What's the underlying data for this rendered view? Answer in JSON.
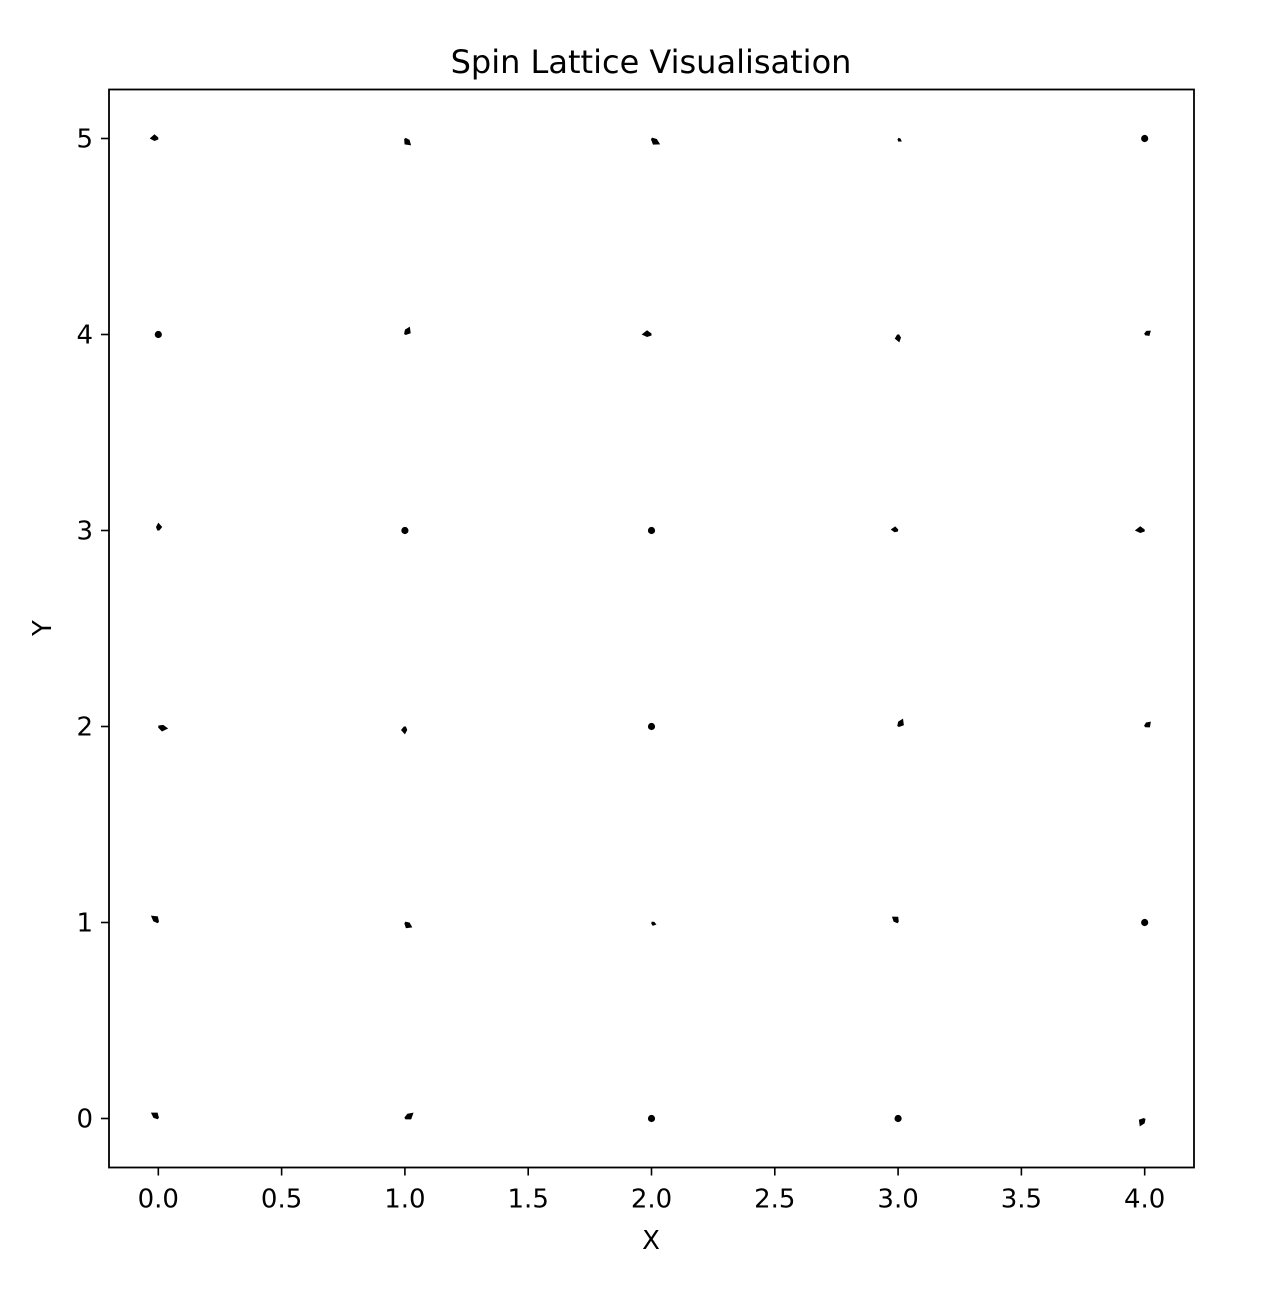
{
  "chart_data": {
    "type": "quiver",
    "title": "Spin Lattice Visualisation",
    "xlabel": "X",
    "ylabel": "Y",
    "xlim": [
      -0.2,
      4.2
    ],
    "ylim": [
      -0.25,
      5.25
    ],
    "xticks": [
      0.0,
      0.5,
      1.0,
      1.5,
      2.0,
      2.5,
      3.0,
      3.5,
      4.0
    ],
    "xtick_labels": [
      "0.0",
      "0.5",
      "1.0",
      "1.5",
      "2.0",
      "2.5",
      "3.0",
      "3.5",
      "4.0"
    ],
    "yticks": [
      0,
      1,
      2,
      3,
      4,
      5
    ],
    "ytick_labels": [
      "0",
      "1",
      "2",
      "3",
      "4",
      "5"
    ],
    "grid": false,
    "arrow_color": "#000000",
    "vectors": [
      {
        "x": 0,
        "y": 0,
        "u": -0.03,
        "v": 0.03
      },
      {
        "x": 1,
        "y": 0,
        "u": 0.035,
        "v": 0.03
      },
      {
        "x": 2,
        "y": 0,
        "u": 0.0,
        "v": 0.0
      },
      {
        "x": 3,
        "y": 0,
        "u": 0.0,
        "v": 0.0
      },
      {
        "x": 4,
        "y": 0,
        "u": -0.02,
        "v": -0.04
      },
      {
        "x": 0,
        "y": 1,
        "u": -0.03,
        "v": 0.035
      },
      {
        "x": 1,
        "y": 1,
        "u": 0.03,
        "v": -0.025
      },
      {
        "x": 2,
        "y": 1,
        "u": 0.02,
        "v": -0.01
      },
      {
        "x": 3,
        "y": 1,
        "u": -0.025,
        "v": 0.03
      },
      {
        "x": 4,
        "y": 1,
        "u": 0.0,
        "v": 0.0
      },
      {
        "x": 0,
        "y": 2,
        "u": 0.04,
        "v": -0.01
      },
      {
        "x": 1,
        "y": 2,
        "u": 0.0,
        "v": -0.04
      },
      {
        "x": 2,
        "y": 2,
        "u": 0.0,
        "v": 0.0
      },
      {
        "x": 3,
        "y": 2,
        "u": 0.02,
        "v": 0.04
      },
      {
        "x": 4,
        "y": 2,
        "u": 0.025,
        "v": 0.025
      },
      {
        "x": 0,
        "y": 3,
        "u": 0.0,
        "v": 0.04
      },
      {
        "x": 1,
        "y": 3,
        "u": 0.0,
        "v": 0.0
      },
      {
        "x": 2,
        "y": 3,
        "u": 0.0,
        "v": 0.0
      },
      {
        "x": 3,
        "y": 3,
        "u": -0.03,
        "v": 0.005
      },
      {
        "x": 4,
        "y": 3,
        "u": -0.04,
        "v": 0.0
      },
      {
        "x": 0,
        "y": 4,
        "u": 0.0,
        "v": 0.0
      },
      {
        "x": 1,
        "y": 4,
        "u": 0.02,
        "v": 0.04
      },
      {
        "x": 2,
        "y": 4,
        "u": -0.04,
        "v": 0.0
      },
      {
        "x": 3,
        "y": 4,
        "u": 0.005,
        "v": -0.04
      },
      {
        "x": 4,
        "y": 4,
        "u": 0.025,
        "v": 0.02
      },
      {
        "x": 0,
        "y": 5,
        "u": -0.035,
        "v": 0.0
      },
      {
        "x": 1,
        "y": 5,
        "u": 0.025,
        "v": -0.035
      },
      {
        "x": 2,
        "y": 5,
        "u": 0.035,
        "v": -0.03
      },
      {
        "x": 3,
        "y": 5,
        "u": 0.015,
        "v": -0.015
      },
      {
        "x": 4,
        "y": 5,
        "u": 0.0,
        "v": 0.0
      }
    ]
  }
}
